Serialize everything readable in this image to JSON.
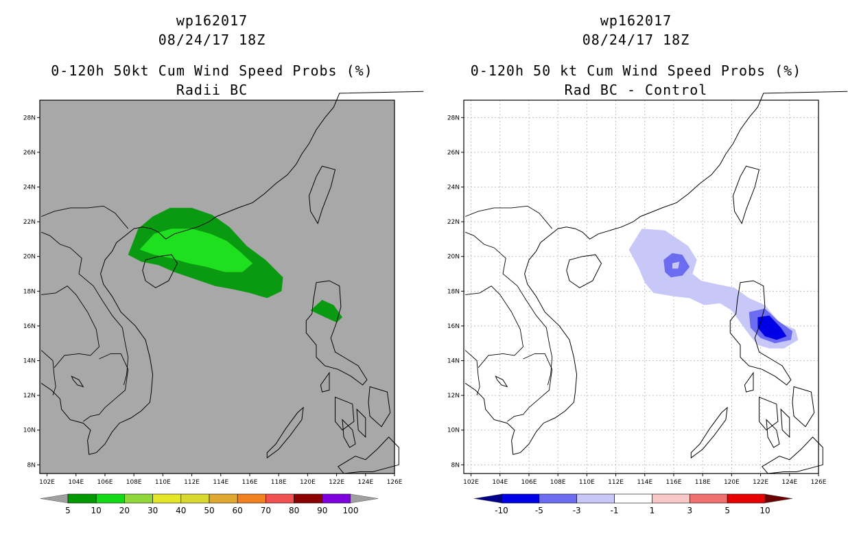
{
  "colors": {
    "land_bg_left": "#a8a8a8",
    "coast": "#000000",
    "green_dark": "#0a9a12",
    "green_light": "#1ee01e",
    "blue_light": "#c8c8f8",
    "blue_mid": "#6c6cf0",
    "blue_dark": "#0000e6"
  },
  "chart_data": [
    {
      "type": "heatmap",
      "storm_id": "wp162017",
      "datetime": "08/24/17 18Z",
      "title": "0-120h 50kt Cum Wind Speed Probs (%)",
      "subtitle": "Radii BC",
      "x_tick_labels": [
        "102E",
        "104E",
        "106E",
        "108E",
        "110E",
        "112E",
        "114E",
        "116E",
        "118E",
        "120E",
        "122E",
        "124E",
        "126E"
      ],
      "y_tick_labels": [
        "8N",
        "10N",
        "12N",
        "14N",
        "16N",
        "18N",
        "20N",
        "22N",
        "24N",
        "26N",
        "28N"
      ],
      "xlim": [
        101.5,
        126
      ],
      "ylim": [
        7.5,
        29
      ],
      "grid": false,
      "legend": {
        "values": [
          "5",
          "10",
          "20",
          "30",
          "40",
          "50",
          "60",
          "70",
          "80",
          "90",
          "100"
        ],
        "colors": [
          "#009a00",
          "#16d916",
          "#8ed63a",
          "#e6e628",
          "#d8d830",
          "#e0a830",
          "#f08020",
          "#f05050",
          "#8b0000",
          "#7e00dc"
        ],
        "ends": [
          "#a0a0a0",
          "#a0a0a0"
        ]
      }
    },
    {
      "type": "heatmap",
      "storm_id": "wp162017",
      "datetime": "08/24/17 18Z",
      "title": "0-120h 50 kt Cum Wind Speed Probs (%)",
      "subtitle": "Rad BC - Control",
      "x_tick_labels": [
        "102E",
        "104E",
        "106E",
        "108E",
        "110E",
        "112E",
        "114E",
        "116E",
        "118E",
        "120E",
        "122E",
        "124E",
        "126E"
      ],
      "y_tick_labels": [
        "8N",
        "10N",
        "12N",
        "14N",
        "16N",
        "18N",
        "20N",
        "22N",
        "24N",
        "26N",
        "28N"
      ],
      "xlim": [
        101.5,
        126
      ],
      "ylim": [
        7.5,
        29
      ],
      "grid": true,
      "legend": {
        "values": [
          "-10",
          "-5",
          "-3",
          "-1",
          "1",
          "3",
          "5",
          "10"
        ],
        "colors": [
          "#0000e6",
          "#6c6cf0",
          "#c8c8f8",
          "#ffffff",
          "#f8c8c8",
          "#f07070",
          "#e60000"
        ],
        "ends": [
          "#00008b",
          "#6b0000"
        ]
      }
    }
  ]
}
